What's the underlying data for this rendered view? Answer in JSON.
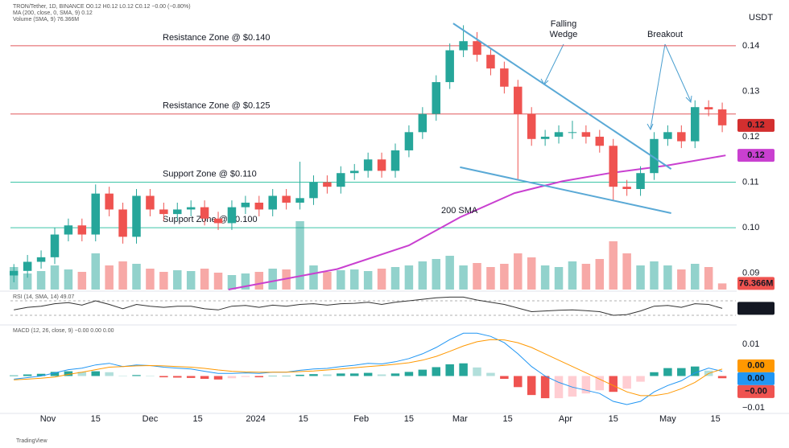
{
  "chart_data": [
    {
      "type": "candlestick",
      "legend": [
        "TRON/Tether, 1D, BINANCE  O0.12 H0.12 L0.12 C0.12 −0.00 (−0.80%)",
        "MA (200, close, 0, SMA, 9)  0.12",
        "Volume (SMA, 9)  76.366M"
      ],
      "currency": "USDT",
      "xlim": [
        "2023-10-21",
        "2024-05-21"
      ],
      "xticks": [
        {
          "value": "2023-11-01",
          "label": "Nov"
        },
        {
          "value": "2023-11-15",
          "label": "15"
        },
        {
          "value": "2023-12-01",
          "label": "Dec"
        },
        {
          "value": "2023-12-15",
          "label": "15"
        },
        {
          "value": "2024-01-01",
          "label": "2024"
        },
        {
          "value": "2024-01-15",
          "label": "15"
        },
        {
          "value": "2024-02-01",
          "label": "Feb"
        },
        {
          "value": "2024-02-15",
          "label": "15"
        },
        {
          "value": "2024-03-01",
          "label": "Mar"
        },
        {
          "value": "2024-03-15",
          "label": "15"
        },
        {
          "value": "2024-04-01",
          "label": "Apr"
        },
        {
          "value": "2024-04-15",
          "label": "15"
        },
        {
          "value": "2024-05-01",
          "label": "May"
        },
        {
          "value": "2024-05-15",
          "label": "15"
        }
      ],
      "ylim": [
        0.0864,
        0.1474
      ],
      "yticks": [
        0.09,
        {
          "value": 0.1,
          "label": "0.10"
        },
        0.11,
        0.12,
        0.13,
        0.14
      ],
      "colors": {
        "up": "#26a69a",
        "down": "#ef5350"
      },
      "x": [
        "2023-10-22",
        "2023-10-26",
        "2023-10-30",
        "2023-11-03",
        "2023-11-07",
        "2023-11-11",
        "2023-11-15",
        "2023-11-19",
        "2023-11-23",
        "2023-11-27",
        "2023-12-01",
        "2023-12-05",
        "2023-12-09",
        "2023-12-13",
        "2023-12-17",
        "2023-12-21",
        "2023-12-25",
        "2023-12-29",
        "2024-01-02",
        "2024-01-06",
        "2024-01-10",
        "2024-01-14",
        "2024-01-18",
        "2024-01-22",
        "2024-01-26",
        "2024-01-30",
        "2024-02-03",
        "2024-02-07",
        "2024-02-11",
        "2024-02-15",
        "2024-02-19",
        "2024-02-23",
        "2024-02-27",
        "2024-03-02",
        "2024-03-06",
        "2024-03-10",
        "2024-03-14",
        "2024-03-18",
        "2024-03-22",
        "2024-03-26",
        "2024-03-30",
        "2024-04-03",
        "2024-04-07",
        "2024-04-11",
        "2024-04-15",
        "2024-04-19",
        "2024-04-23",
        "2024-04-27",
        "2024-05-01",
        "2024-05-05",
        "2024-05-09",
        "2024-05-13",
        "2024-05-17"
      ],
      "open": [
        0.0895,
        0.0905,
        0.0925,
        0.0935,
        0.0985,
        0.1005,
        0.0985,
        0.1075,
        0.104,
        0.098,
        0.107,
        0.104,
        0.103,
        0.104,
        0.1045,
        0.102,
        0.101,
        0.1045,
        0.1055,
        0.104,
        0.107,
        0.1055,
        0.1065,
        0.11,
        0.109,
        0.112,
        0.1125,
        0.115,
        0.1125,
        0.117,
        0.121,
        0.125,
        0.132,
        0.139,
        0.141,
        0.138,
        0.135,
        0.131,
        0.125,
        0.1195,
        0.12,
        0.121,
        0.121,
        0.12,
        0.118,
        0.109,
        0.1085,
        0.112,
        0.1195,
        0.121,
        0.119,
        0.1265,
        0.126
      ],
      "high": [
        0.092,
        0.094,
        0.095,
        0.1,
        0.102,
        0.102,
        0.1095,
        0.109,
        0.1055,
        0.1085,
        0.1085,
        0.1055,
        0.1055,
        0.106,
        0.106,
        0.1035,
        0.106,
        0.107,
        0.107,
        0.1085,
        0.1085,
        0.1145,
        0.1115,
        0.1115,
        0.1135,
        0.114,
        0.1165,
        0.1165,
        0.1185,
        0.1225,
        0.1265,
        0.1335,
        0.1405,
        0.1445,
        0.143,
        0.1395,
        0.1365,
        0.1325,
        0.1265,
        0.1215,
        0.1225,
        0.1235,
        0.1225,
        0.1215,
        0.1195,
        0.1105,
        0.1135,
        0.121,
        0.1225,
        0.1225,
        0.128,
        0.128,
        0.1275
      ],
      "low": [
        0.088,
        0.089,
        0.091,
        0.092,
        0.097,
        0.097,
        0.097,
        0.1025,
        0.0965,
        0.0965,
        0.1025,
        0.1015,
        0.1015,
        0.1025,
        0.1005,
        0.0995,
        0.0995,
        0.103,
        0.1025,
        0.1025,
        0.104,
        0.104,
        0.105,
        0.1075,
        0.1075,
        0.1105,
        0.111,
        0.111,
        0.111,
        0.1155,
        0.1195,
        0.1235,
        0.1305,
        0.1375,
        0.1365,
        0.1335,
        0.1295,
        0.1105,
        0.118,
        0.118,
        0.1185,
        0.1195,
        0.1185,
        0.1165,
        0.106,
        0.107,
        0.107,
        0.1105,
        0.118,
        0.1175,
        0.1175,
        0.1245,
        0.121
      ],
      "close": [
        0.0905,
        0.0925,
        0.0935,
        0.0985,
        0.1005,
        0.0985,
        0.1075,
        0.104,
        0.098,
        0.107,
        0.104,
        0.103,
        0.104,
        0.1045,
        0.102,
        0.101,
        0.1045,
        0.1055,
        0.104,
        0.107,
        0.1055,
        0.1065,
        0.11,
        0.109,
        0.112,
        0.1125,
        0.115,
        0.1125,
        0.117,
        0.121,
        0.125,
        0.132,
        0.139,
        0.141,
        0.138,
        0.135,
        0.131,
        0.125,
        0.1195,
        0.12,
        0.121,
        0.121,
        0.12,
        0.118,
        0.109,
        0.1085,
        0.112,
        0.1195,
        0.121,
        0.119,
        0.1265,
        0.126,
        0.1225
      ],
      "volume": [
        280,
        200,
        230,
        300,
        250,
        220,
        450,
        300,
        350,
        320,
        260,
        220,
        240,
        230,
        260,
        210,
        180,
        200,
        220,
        260,
        250,
        850,
        300,
        220,
        240,
        250,
        230,
        260,
        280,
        300,
        350,
        380,
        420,
        300,
        330,
        280,
        320,
        450,
        400,
        300,
        280,
        350,
        320,
        380,
        600,
        450,
        300,
        350,
        300,
        250,
        320,
        280,
        76.366
      ],
      "volume_lim": [
        0,
        1000
      ],
      "volume_label": {
        "value": 76.366,
        "label": "76.366M"
      },
      "sma": {
        "name": "200 SMA",
        "color": "#c940d0",
        "x": [
          "2023-12-24",
          "2024-01-25",
          "2024-02-15",
          "2024-03-01",
          "2024-03-17",
          "2024-03-31",
          "2024-04-14",
          "2024-05-01",
          "2024-05-18"
        ],
        "values": [
          0.0864,
          0.0909,
          0.0961,
          0.1023,
          0.1076,
          0.1102,
          0.112,
          0.1137,
          0.1159
        ]
      },
      "zones": [
        {
          "label": "Resistance Zone @ $0.140",
          "value": 0.14,
          "color": "#e0585b"
        },
        {
          "label": "Resistance Zone @ $0.125",
          "value": 0.125,
          "color": "#e0585b"
        },
        {
          "label": "Support Zone @ $0.110",
          "value": 0.11,
          "color": "#3cc4a6"
        },
        {
          "label": "Support Zone @ $0.100",
          "value": 0.1,
          "color": "#3cc4a6"
        }
      ],
      "trendlines": [
        {
          "x": [
            "2024-02-28",
            "2024-05-02"
          ],
          "y": [
            0.1449,
            0.1129
          ],
          "color": "#5aa9d6"
        },
        {
          "x": [
            "2024-03-01",
            "2024-05-02"
          ],
          "y": [
            0.1133,
            0.1032
          ],
          "color": "#5aa9d6"
        }
      ],
      "annotations": [
        {
          "lines": [
            "Falling",
            "Wedge"
          ],
          "color": "#4a9fd0"
        },
        {
          "lines": [
            "Breakout"
          ],
          "color": "#4a9fd0"
        }
      ],
      "last_labels": [
        {
          "value": 0.1225,
          "label": "0.12",
          "color": "#d32f2f"
        },
        {
          "value": 0.1159,
          "label": "0.12",
          "color": "#c940d0"
        }
      ]
    },
    {
      "type": "line",
      "title": "RSI (14, SMA, 14)  49.07",
      "ylim": [
        8,
        92
      ],
      "bands": [
        70,
        30
      ],
      "color": "#333333",
      "values": [
        45,
        52,
        55,
        62,
        65,
        58,
        70,
        60,
        48,
        60,
        55,
        52,
        55,
        55,
        48,
        45,
        55,
        57,
        52,
        58,
        55,
        60,
        62,
        58,
        62,
        63,
        66,
        60,
        66,
        70,
        74,
        78,
        80,
        80,
        72,
        66,
        60,
        50,
        40,
        42,
        44,
        45,
        43,
        40,
        30,
        32,
        42,
        55,
        57,
        52,
        62,
        60,
        49.07
      ]
    },
    {
      "type": "macd",
      "title": "MACD (12, 26, close, 9)  −0.00  0.00  0.00",
      "ylim": [
        -0.0118,
        0.0151
      ],
      "yticks": [
        0.01,
        {
          "value": -0.01,
          "label": "−0.01"
        }
      ],
      "hist_colors": [
        "#26a69a",
        "#b2dfdb",
        "#ffcdd2",
        "#ef5350"
      ],
      "histogram": [
        0.0002,
        0.0005,
        0.0007,
        0.0013,
        0.0015,
        0.0013,
        0.0015,
        0.0012,
        0,
        0.0003,
        0,
        -0.0004,
        -0.0005,
        -0.0006,
        -0.0009,
        -0.0011,
        -0.0007,
        -0.0003,
        -0.0004,
        0,
        0,
        0.0004,
        0.0006,
        0.0005,
        0.0008,
        0.0008,
        0.001,
        0.0005,
        0.0008,
        0.0013,
        0.002,
        0.0028,
        0.0037,
        0.004,
        0.0027,
        0.001,
        -0.0009,
        -0.0035,
        -0.006,
        -0.007,
        -0.007,
        -0.0065,
        -0.0055,
        -0.0045,
        -0.005,
        -0.004,
        -0.0018,
        0.0012,
        0.0025,
        0.0025,
        0.003,
        0.0017,
        -0.0007
      ],
      "series": [
        {
          "color": "#2196f3",
          "values": [
            -0.001,
            -0.0005,
            0,
            0.001,
            0.002,
            0.0025,
            0.0035,
            0.004,
            0.003,
            0.0035,
            0.0033,
            0.0028,
            0.0025,
            0.0022,
            0.0015,
            0.0008,
            0.0008,
            0.001,
            0.0008,
            0.0012,
            0.0012,
            0.0018,
            0.0022,
            0.0024,
            0.003,
            0.0034,
            0.004,
            0.0038,
            0.0045,
            0.0055,
            0.007,
            0.009,
            0.0115,
            0.0135,
            0.0135,
            0.0125,
            0.0105,
            0.007,
            0.003,
            0,
            -0.002,
            -0.0035,
            -0.0045,
            -0.0055,
            -0.008,
            -0.009,
            -0.008,
            -0.005,
            -0.003,
            -0.0015,
            0.001,
            0.0025,
            0.0015
          ]
        },
        {
          "color": "#ff9800",
          "values": [
            -0.0012,
            -0.001,
            -0.0007,
            -0.0003,
            0.0005,
            0.0012,
            0.002,
            0.0028,
            0.003,
            0.0032,
            0.0033,
            0.0032,
            0.003,
            0.0028,
            0.0024,
            0.0019,
            0.0015,
            0.0013,
            0.0012,
            0.0012,
            0.0012,
            0.0014,
            0.0016,
            0.0019,
            0.0022,
            0.0026,
            0.003,
            0.0033,
            0.0037,
            0.0042,
            0.005,
            0.0062,
            0.0078,
            0.0095,
            0.0108,
            0.0115,
            0.0114,
            0.0105,
            0.009,
            0.007,
            0.005,
            0.003,
            0.001,
            -0.001,
            -0.003,
            -0.005,
            -0.0062,
            -0.0062,
            -0.0055,
            -0.004,
            -0.002,
            0.0008,
            0.0022
          ]
        }
      ],
      "last_labels": [
        {
          "value": 0.0022,
          "label": "0.00",
          "color": "#ff9800"
        },
        {
          "value": 0.0015,
          "label": "0.00",
          "color": "#2196f3"
        },
        {
          "value": -0.0007,
          "label": "−0.00",
          "color": "#ef5350"
        }
      ]
    }
  ],
  "footer": "TradingView"
}
